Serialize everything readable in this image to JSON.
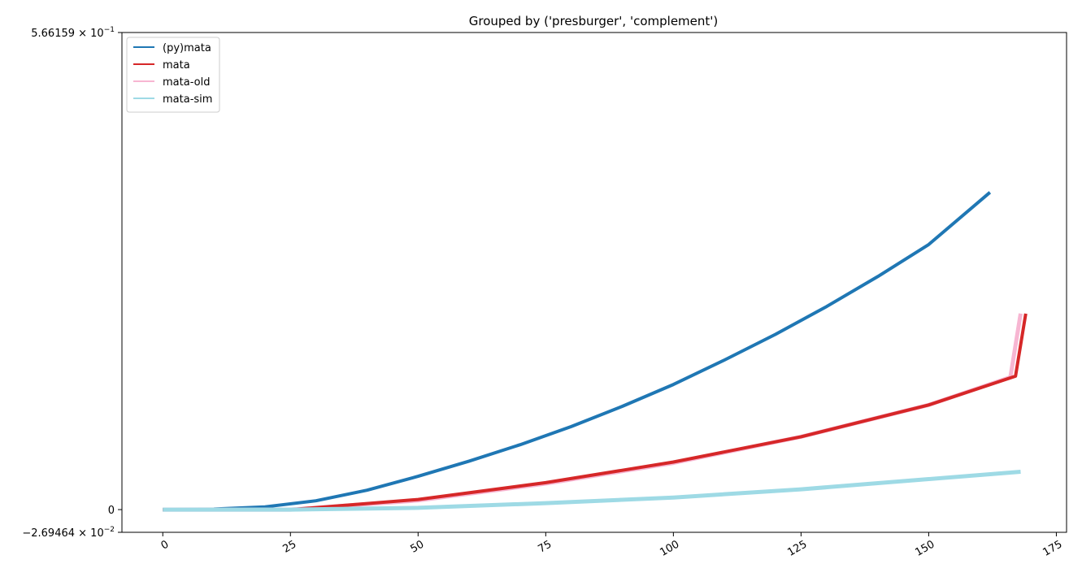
{
  "chart_data": {
    "type": "line",
    "title": "Grouped by ('presburger', 'complement')",
    "xlabel": "",
    "ylabel": "",
    "xlim": [
      -8,
      177
    ],
    "ylim": [
      -0.0269464,
      0.566159
    ],
    "x_ticks": [
      0,
      25,
      50,
      75,
      100,
      125,
      150,
      175
    ],
    "x_tick_labels": [
      "0",
      "25",
      "50",
      "75",
      "100",
      "125",
      "150",
      "175"
    ],
    "y_ticks": [
      {
        "value": 0.566159,
        "mantissa": "5.66159",
        "base": "× 10",
        "exp": "−1"
      },
      {
        "value": 0,
        "plain": "0"
      },
      {
        "value": -0.0269464,
        "mantissa": "−2.69464",
        "base": "× 10",
        "exp": "−2"
      }
    ],
    "grid": false,
    "legend_position": "top-left",
    "series": [
      {
        "name": "(py)mata",
        "color": "#1f77b4",
        "width": 4,
        "x": [
          0,
          10,
          20,
          30,
          40,
          50,
          60,
          70,
          80,
          90,
          100,
          110,
          120,
          130,
          140,
          150,
          162
        ],
        "y": [
          0,
          0.0006,
          0.0032,
          0.0105,
          0.023,
          0.0395,
          0.0575,
          0.077,
          0.0985,
          0.1225,
          0.1485,
          0.1775,
          0.208,
          0.241,
          0.2765,
          0.3145,
          0.3765
        ]
      },
      {
        "name": "mata-old",
        "color": "#f7b6d2",
        "width": 5,
        "x": [
          0,
          25,
          50,
          75,
          100,
          125,
          150,
          166,
          168
        ],
        "y": [
          0,
          0,
          0.0109,
          0.0309,
          0.0554,
          0.0865,
          0.1242,
          0.1571,
          0.2326
        ]
      },
      {
        "name": "mata",
        "color": "#d62728",
        "width": 4,
        "x": [
          0,
          25,
          50,
          75,
          100,
          125,
          150,
          167,
          169
        ],
        "y": [
          0,
          0,
          0.012,
          0.032,
          0.0565,
          0.0865,
          0.1242,
          0.1583,
          0.2326
        ]
      },
      {
        "name": "mata-sim",
        "color": "#9edae5",
        "width": 5,
        "x": [
          0,
          25,
          50,
          75,
          100,
          125,
          150,
          168
        ],
        "y": [
          0,
          0,
          0.0021,
          0.0077,
          0.0143,
          0.0241,
          0.0362,
          0.0449
        ]
      }
    ],
    "legend_order": [
      "(py)mata",
      "mata",
      "mata-old",
      "mata-sim"
    ]
  }
}
